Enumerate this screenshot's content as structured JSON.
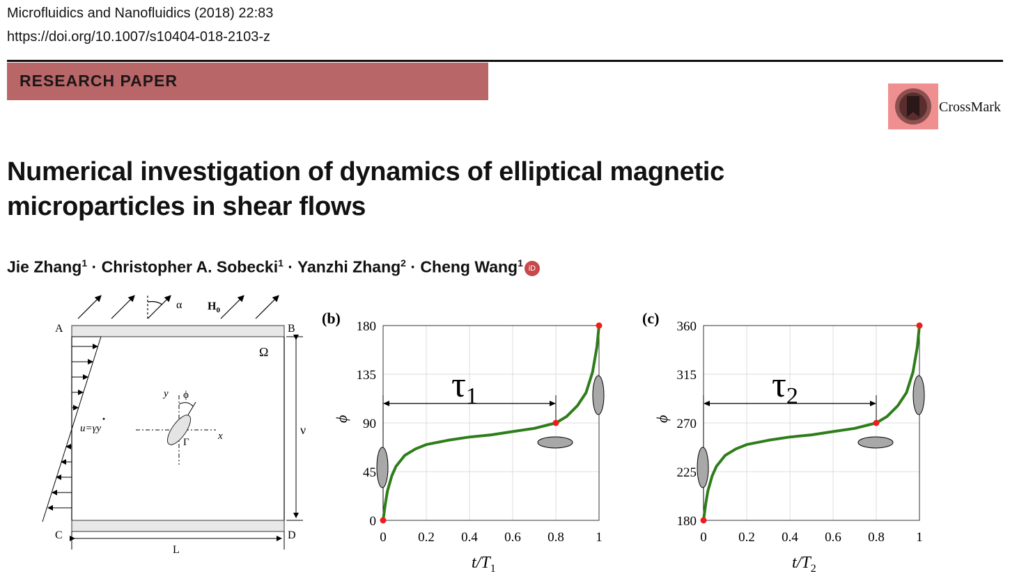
{
  "header": {
    "journal": "Microfluidics and Nanofluidics (2018) 22:83",
    "doi": "https://doi.org/10.1007/s10404-018-2103-z",
    "banner": "RESEARCH PAPER",
    "crossmark": "CrossMark"
  },
  "title": "Numerical investigation of dynamics of elliptical magnetic microparticles in shear flows",
  "authors": [
    {
      "name": "Jie Zhang",
      "affil": "1"
    },
    {
      "name": "Christopher A. Sobecki",
      "affil": "1"
    },
    {
      "name": "Yanzhi Zhang",
      "affil": "2"
    },
    {
      "name": "Cheng Wang",
      "affil": "1"
    }
  ],
  "author_separator": "·",
  "orcid_icon": "iD",
  "figure": {
    "panel_a": {
      "corners": [
        "A",
        "B",
        "C",
        "D"
      ],
      "field_label": "H",
      "field_sub": "0",
      "angle_label": "α",
      "domain_label": "Ω",
      "velocity_label": "u=γy",
      "dot_accent": "·",
      "axis_x": "x",
      "axis_y": "y",
      "phi_label": "ϕ",
      "gamma_label": "Γ",
      "height_label": "ν",
      "width_label": "L"
    },
    "panel_b": {
      "label": "(b)",
      "tau": "τ",
      "tau_sub": "1",
      "ylabel": "ϕ",
      "xlabel": "t/T",
      "xlabel_sub": "1"
    },
    "panel_c": {
      "label": "(c)",
      "tau": "τ",
      "tau_sub": "2",
      "ylabel": "ϕ",
      "xlabel": "t/T",
      "xlabel_sub": "2"
    }
  },
  "chart_data": [
    {
      "type": "line",
      "panel": "(b)",
      "xlabel": "t/T1",
      "ylabel": "ϕ",
      "xlim": [
        0,
        1
      ],
      "ylim": [
        0,
        180
      ],
      "xticks": [
        0,
        0.2,
        0.4,
        0.6,
        0.8,
        1
      ],
      "yticks": [
        0,
        45,
        90,
        135,
        180
      ],
      "grid": true,
      "series": [
        {
          "color": "#2e7d1a",
          "x": [
            0,
            0.01,
            0.02,
            0.04,
            0.06,
            0.1,
            0.15,
            0.2,
            0.3,
            0.4,
            0.5,
            0.6,
            0.7,
            0.8,
            0.85,
            0.9,
            0.94,
            0.97,
            0.99,
            1
          ],
          "y": [
            0,
            15,
            27,
            41,
            50,
            60,
            66,
            70,
            74,
            77,
            79,
            82,
            85,
            90,
            96,
            106,
            118,
            137,
            160,
            180
          ]
        }
      ],
      "markers": [
        {
          "x": 0,
          "y": 0
        },
        {
          "x": 0.8,
          "y": 90
        },
        {
          "x": 1,
          "y": 180
        }
      ],
      "annotation": {
        "label": "τ1",
        "from": 0,
        "to": 0.8
      }
    },
    {
      "type": "line",
      "panel": "(c)",
      "xlabel": "t/T2",
      "ylabel": "ϕ",
      "xlim": [
        0,
        1
      ],
      "ylim": [
        180,
        360
      ],
      "xticks": [
        0,
        0.2,
        0.4,
        0.6,
        0.8,
        1
      ],
      "yticks": [
        180,
        225,
        270,
        315,
        360
      ],
      "grid": true,
      "series": [
        {
          "color": "#2e7d1a",
          "x": [
            0,
            0.01,
            0.02,
            0.04,
            0.06,
            0.1,
            0.15,
            0.2,
            0.3,
            0.4,
            0.5,
            0.6,
            0.7,
            0.8,
            0.85,
            0.9,
            0.94,
            0.97,
            0.99,
            1
          ],
          "y": [
            180,
            195,
            207,
            221,
            230,
            240,
            246,
            250,
            254,
            257,
            259,
            262,
            265,
            270,
            276,
            286,
            298,
            317,
            340,
            360
          ]
        }
      ],
      "markers": [
        {
          "x": 0,
          "y": 180
        },
        {
          "x": 0.8,
          "y": 270
        },
        {
          "x": 1,
          "y": 360
        }
      ],
      "annotation": {
        "label": "τ2",
        "from": 0,
        "to": 0.8
      }
    }
  ]
}
